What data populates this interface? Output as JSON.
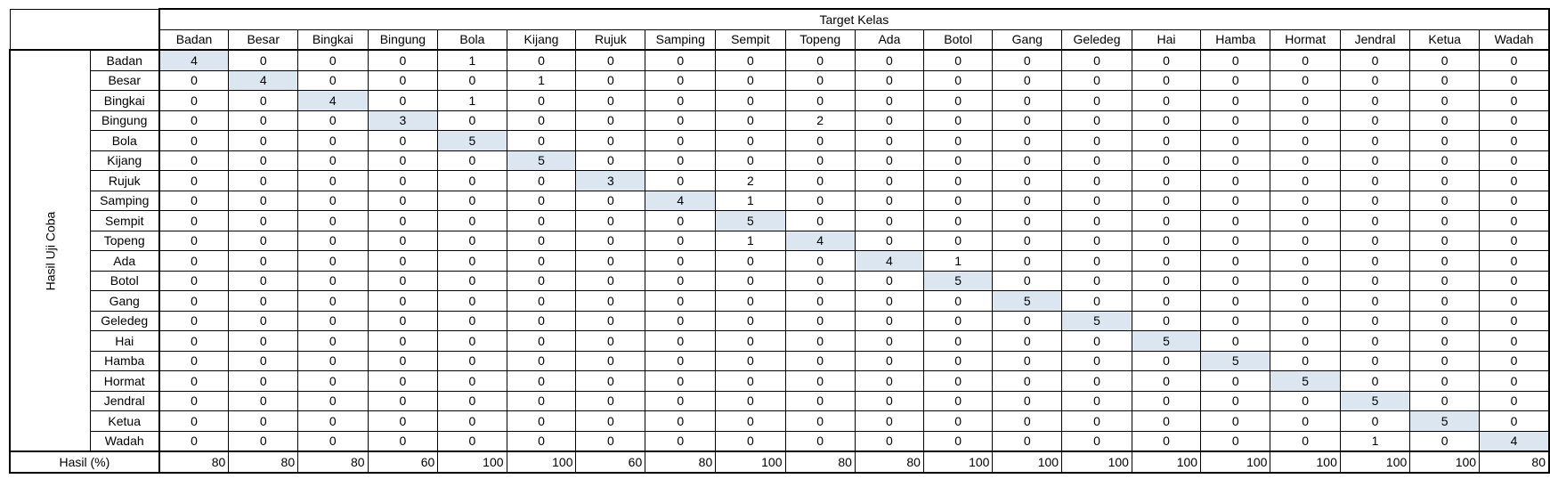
{
  "title": "Target Kelas",
  "side_label": "Hasil Uji Coba",
  "result_label": "Hasil (%)",
  "columns": [
    "Badan",
    "Besar",
    "Bingkai",
    "Bingung",
    "Bola",
    "Kijang",
    "Rujuk",
    "Samping",
    "Sempit",
    "Topeng",
    "Ada",
    "Botol",
    "Gang",
    "Geledeg",
    "Hai",
    "Hamba",
    "Hormat",
    "Jendral",
    "Ketua",
    "Wadah"
  ],
  "rows": [
    {
      "label": "Badan",
      "values": [
        4,
        0,
        0,
        0,
        1,
        0,
        0,
        0,
        0,
        0,
        0,
        0,
        0,
        0,
        0,
        0,
        0,
        0,
        0,
        0
      ]
    },
    {
      "label": "Besar",
      "values": [
        0,
        4,
        0,
        0,
        0,
        1,
        0,
        0,
        0,
        0,
        0,
        0,
        0,
        0,
        0,
        0,
        0,
        0,
        0,
        0
      ]
    },
    {
      "label": "Bingkai",
      "values": [
        0,
        0,
        4,
        0,
        1,
        0,
        0,
        0,
        0,
        0,
        0,
        0,
        0,
        0,
        0,
        0,
        0,
        0,
        0,
        0
      ]
    },
    {
      "label": "Bingung",
      "values": [
        0,
        0,
        0,
        3,
        0,
        0,
        0,
        0,
        0,
        2,
        0,
        0,
        0,
        0,
        0,
        0,
        0,
        0,
        0,
        0
      ]
    },
    {
      "label": "Bola",
      "values": [
        0,
        0,
        0,
        0,
        5,
        0,
        0,
        0,
        0,
        0,
        0,
        0,
        0,
        0,
        0,
        0,
        0,
        0,
        0,
        0
      ]
    },
    {
      "label": "Kijang",
      "values": [
        0,
        0,
        0,
        0,
        0,
        5,
        0,
        0,
        0,
        0,
        0,
        0,
        0,
        0,
        0,
        0,
        0,
        0,
        0,
        0
      ]
    },
    {
      "label": "Rujuk",
      "values": [
        0,
        0,
        0,
        0,
        0,
        0,
        3,
        0,
        2,
        0,
        0,
        0,
        0,
        0,
        0,
        0,
        0,
        0,
        0,
        0
      ]
    },
    {
      "label": "Samping",
      "values": [
        0,
        0,
        0,
        0,
        0,
        0,
        0,
        4,
        1,
        0,
        0,
        0,
        0,
        0,
        0,
        0,
        0,
        0,
        0,
        0
      ]
    },
    {
      "label": "Sempit",
      "values": [
        0,
        0,
        0,
        0,
        0,
        0,
        0,
        0,
        5,
        0,
        0,
        0,
        0,
        0,
        0,
        0,
        0,
        0,
        0,
        0
      ]
    },
    {
      "label": "Topeng",
      "values": [
        0,
        0,
        0,
        0,
        0,
        0,
        0,
        0,
        1,
        4,
        0,
        0,
        0,
        0,
        0,
        0,
        0,
        0,
        0,
        0
      ]
    },
    {
      "label": "Ada",
      "values": [
        0,
        0,
        0,
        0,
        0,
        0,
        0,
        0,
        0,
        0,
        4,
        1,
        0,
        0,
        0,
        0,
        0,
        0,
        0,
        0
      ]
    },
    {
      "label": "Botol",
      "values": [
        0,
        0,
        0,
        0,
        0,
        0,
        0,
        0,
        0,
        0,
        0,
        5,
        0,
        0,
        0,
        0,
        0,
        0,
        0,
        0
      ]
    },
    {
      "label": "Gang",
      "values": [
        0,
        0,
        0,
        0,
        0,
        0,
        0,
        0,
        0,
        0,
        0,
        0,
        5,
        0,
        0,
        0,
        0,
        0,
        0,
        0
      ]
    },
    {
      "label": "Geledeg",
      "values": [
        0,
        0,
        0,
        0,
        0,
        0,
        0,
        0,
        0,
        0,
        0,
        0,
        0,
        5,
        0,
        0,
        0,
        0,
        0,
        0
      ]
    },
    {
      "label": "Hai",
      "values": [
        0,
        0,
        0,
        0,
        0,
        0,
        0,
        0,
        0,
        0,
        0,
        0,
        0,
        0,
        5,
        0,
        0,
        0,
        0,
        0
      ]
    },
    {
      "label": "Hamba",
      "values": [
        0,
        0,
        0,
        0,
        0,
        0,
        0,
        0,
        0,
        0,
        0,
        0,
        0,
        0,
        0,
        5,
        0,
        0,
        0,
        0
      ]
    },
    {
      "label": "Hormat",
      "values": [
        0,
        0,
        0,
        0,
        0,
        0,
        0,
        0,
        0,
        0,
        0,
        0,
        0,
        0,
        0,
        0,
        5,
        0,
        0,
        0
      ]
    },
    {
      "label": "Jendral",
      "values": [
        0,
        0,
        0,
        0,
        0,
        0,
        0,
        0,
        0,
        0,
        0,
        0,
        0,
        0,
        0,
        0,
        0,
        5,
        0,
        0
      ]
    },
    {
      "label": "Ketua",
      "values": [
        0,
        0,
        0,
        0,
        0,
        0,
        0,
        0,
        0,
        0,
        0,
        0,
        0,
        0,
        0,
        0,
        0,
        0,
        5,
        0
      ]
    },
    {
      "label": "Wadah",
      "values": [
        0,
        0,
        0,
        0,
        0,
        0,
        0,
        0,
        0,
        0,
        0,
        0,
        0,
        0,
        0,
        0,
        0,
        1,
        0,
        4
      ]
    }
  ],
  "results": [
    80,
    80,
    80,
    60,
    100,
    100,
    60,
    80,
    100,
    80,
    80,
    100,
    100,
    100,
    100,
    100,
    100,
    100,
    100,
    80
  ],
  "colors": {
    "diagonal": "#dce6f1",
    "border": "#000000"
  }
}
